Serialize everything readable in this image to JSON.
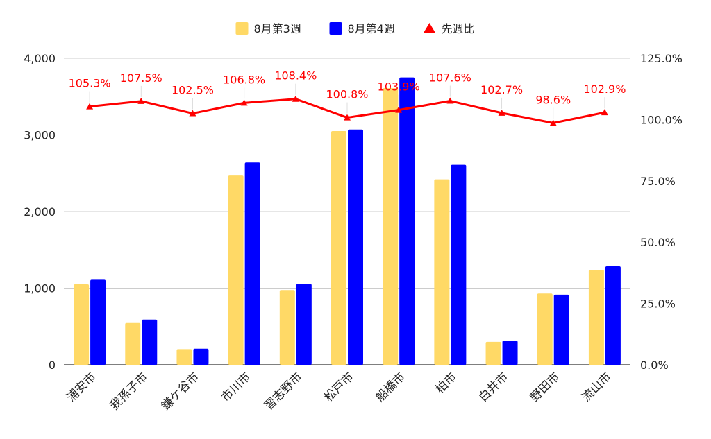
{
  "chart_data": {
    "type": "bar",
    "categories": [
      "浦安市",
      "我孫子市",
      "鎌ケ谷市",
      "市川市",
      "習志野市",
      "松戸市",
      "船橋市",
      "柏市",
      "白井市",
      "野田市",
      "流山市"
    ],
    "series": [
      {
        "name": "8月第3週",
        "type": "bar",
        "axis": "left",
        "color": "#FFD966",
        "values": [
          1050,
          545,
          205,
          2470,
          975,
          3050,
          3610,
          2420,
          300,
          930,
          1240
        ]
      },
      {
        "name": "8月第4週",
        "type": "bar",
        "axis": "left",
        "color": "#0000FF",
        "values": [
          1110,
          590,
          210,
          2640,
          1055,
          3070,
          3750,
          2610,
          315,
          915,
          1285
        ]
      },
      {
        "name": "先週比",
        "type": "line",
        "axis": "right",
        "color": "#FF0000",
        "marker": "triangle",
        "values": [
          105.3,
          107.5,
          102.5,
          106.8,
          108.4,
          100.8,
          103.9,
          107.6,
          102.7,
          98.6,
          102.9
        ]
      }
    ],
    "data_labels": [
      "105.3%",
      "107.5%",
      "102.5%",
      "106.8%",
      "108.4%",
      "100.8%",
      "103.9%",
      "107.6%",
      "102.7%",
      "98.6%",
      "102.9%"
    ],
    "y_left": {
      "min": 0,
      "max": 4000,
      "ticks": [
        0,
        1000,
        2000,
        3000,
        4000
      ],
      "tick_labels": [
        "0",
        "1,000",
        "2,000",
        "3,000",
        "4,000"
      ]
    },
    "y_right": {
      "min": 0,
      "max": 125,
      "ticks": [
        0,
        25,
        50,
        75,
        100,
        125
      ],
      "tick_labels": [
        "0.0%",
        "25.0%",
        "50.0%",
        "75.0%",
        "100.0%",
        "125.0%"
      ]
    },
    "grid": true,
    "legend_position": "top-center",
    "title": "",
    "xlabel": "",
    "ylabel": ""
  }
}
